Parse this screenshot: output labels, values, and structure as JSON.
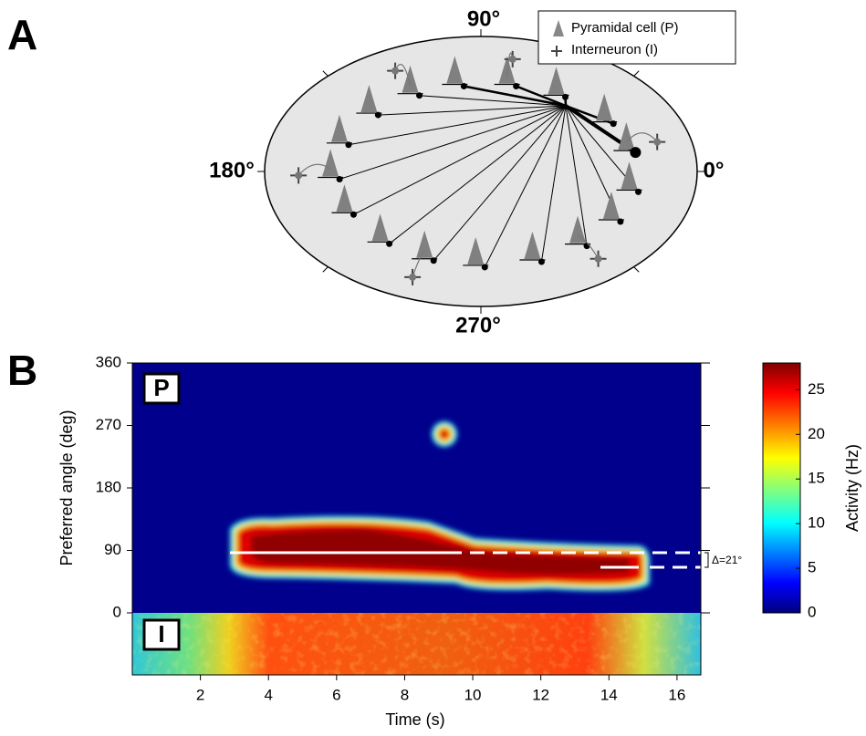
{
  "panel_a": {
    "label": "A",
    "angle_labels": [
      "90°",
      "180°",
      "0°",
      "270°"
    ],
    "legend": [
      "Pyramidal cell (P)",
      "Interneuron (I)"
    ]
  },
  "chart_data": {
    "type": "heatmap",
    "label": "B",
    "xlabel": "Time (s)",
    "ylabel": "Preferred angle (deg)",
    "xlim": [
      0,
      16.7
    ],
    "xticks": [
      2,
      4,
      6,
      8,
      10,
      12,
      14,
      16
    ],
    "ylim": [
      0,
      360
    ],
    "yticks": [
      0,
      90,
      180,
      270,
      360
    ],
    "panel_labels": [
      "P",
      "I"
    ],
    "annotation": "Δ=21°",
    "colorbar": {
      "label": "Activity (Hz)",
      "lim": [
        0,
        28
      ],
      "ticks": [
        0,
        5,
        10,
        15,
        20,
        25
      ]
    }
  }
}
